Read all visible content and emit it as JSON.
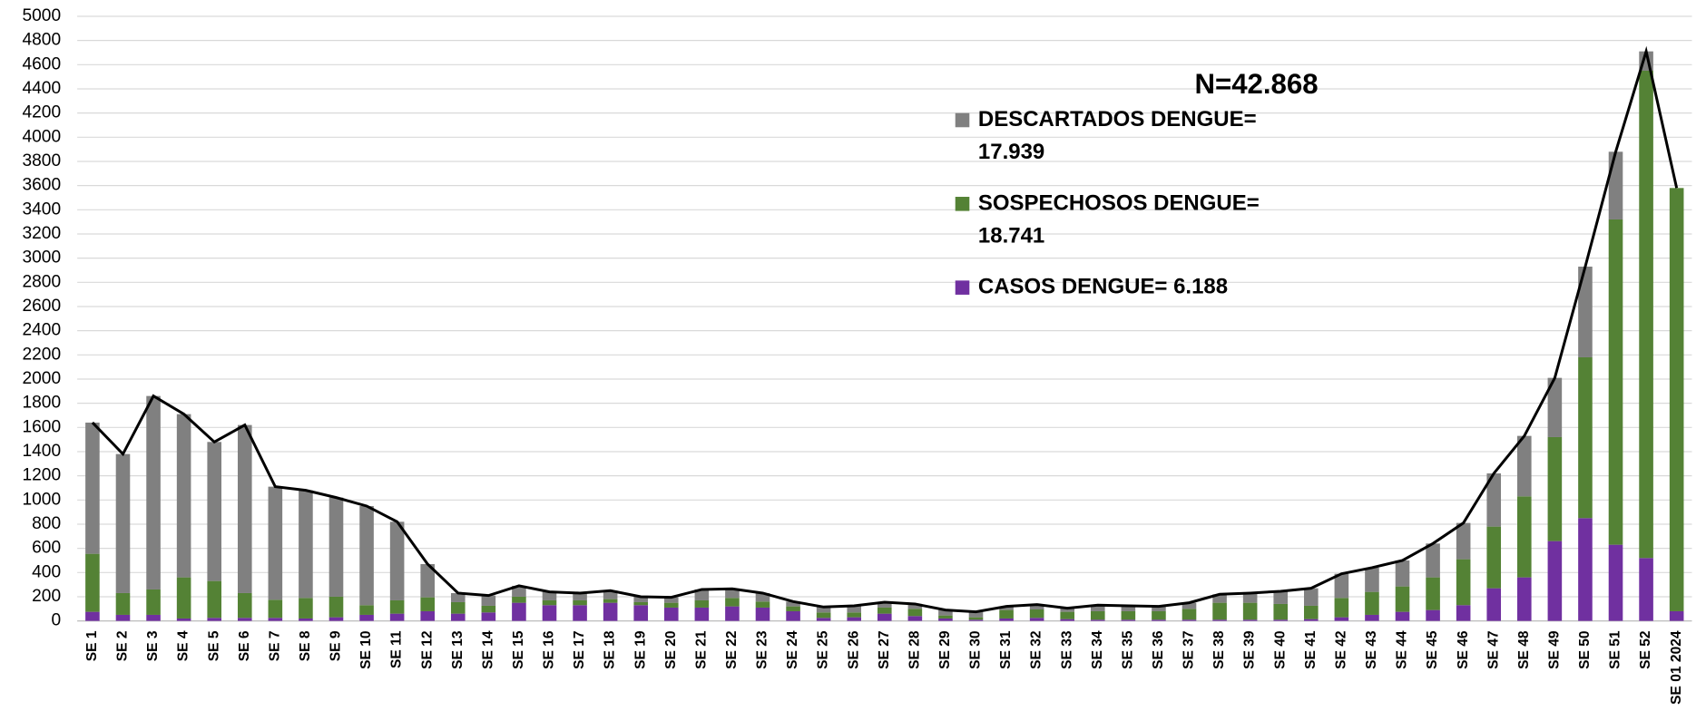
{
  "chart_data": {
    "type": "bar",
    "stacked": true,
    "annotation": "N=42.868",
    "categories": [
      "SE 1",
      "SE 2",
      "SE 3",
      "SE 4",
      "SE 5",
      "SE 6",
      "SE 7",
      "SE 8",
      "SE 9",
      "SE 10",
      "SE 11",
      "SE 12",
      "SE 13",
      "SE 14",
      "SE 15",
      "SE 16",
      "SE 17",
      "SE 18",
      "SE 19",
      "SE 20",
      "SE 21",
      "SE 22",
      "SE 23",
      "SE 24",
      "SE 25",
      "SE 26",
      "SE 27",
      "SE 28",
      "SE 29",
      "SE 30",
      "SE 31",
      "SE 32",
      "SE 33",
      "SE 34",
      "SE 35",
      "SE 36",
      "SE 37",
      "SE 38",
      "SE 39",
      "SE 40",
      "SE 41",
      "SE 42",
      "SE 43",
      "SE 44",
      "SE 45",
      "SE 46",
      "SE 47",
      "SE 48",
      "SE 49",
      "SE 50",
      "SE 51",
      "SE 52",
      "SE 01 2024"
    ],
    "series": [
      {
        "name": "CASOS DENGUE= 6.188",
        "color": "#7030a0",
        "values": [
          75,
          50,
          50,
          20,
          25,
          25,
          25,
          20,
          30,
          50,
          60,
          80,
          60,
          70,
          150,
          130,
          130,
          150,
          130,
          110,
          110,
          120,
          110,
          80,
          25,
          30,
          60,
          40,
          20,
          10,
          20,
          25,
          15,
          10,
          10,
          10,
          10,
          10,
          10,
          10,
          15,
          30,
          50,
          75,
          90,
          130,
          270,
          360,
          660,
          850,
          630,
          520,
          80
        ]
      },
      {
        "name": "SOSPECHOSOS DENGUE= 18.741",
        "color": "#548235",
        "values": [
          480,
          180,
          210,
          340,
          305,
          205,
          150,
          170,
          170,
          80,
          110,
          115,
          95,
          55,
          50,
          40,
          40,
          30,
          25,
          40,
          60,
          70,
          50,
          40,
          45,
          40,
          50,
          60,
          25,
          20,
          70,
          70,
          60,
          70,
          70,
          70,
          90,
          140,
          140,
          130,
          110,
          160,
          190,
          210,
          270,
          380,
          510,
          670,
          860,
          1330,
          2690,
          4030,
          3500
        ]
      },
      {
        "name": "DESCARTADOS DENGUE= 17.939",
        "color": "#808080",
        "values": [
          1085,
          1150,
          1600,
          1350,
          1150,
          1390,
          935,
          890,
          820,
          820,
          650,
          275,
          75,
          85,
          90,
          70,
          60,
          70,
          45,
          45,
          90,
          75,
          70,
          40,
          45,
          55,
          45,
          40,
          45,
          45,
          30,
          40,
          30,
          50,
          45,
          40,
          50,
          70,
          80,
          105,
          145,
          200,
          200,
          215,
          280,
          300,
          440,
          500,
          490,
          750,
          560,
          160,
          0
        ]
      }
    ],
    "totals": [
      1640,
      1380,
      1860,
      1710,
      1480,
      1620,
      1110,
      1080,
      1020,
      950,
      820,
      470,
      230,
      210,
      290,
      240,
      230,
      250,
      200,
      195,
      260,
      265,
      230,
      160,
      115,
      125,
      155,
      140,
      90,
      75,
      120,
      135,
      105,
      130,
      125,
      120,
      150,
      220,
      230,
      245,
      270,
      390,
      440,
      500,
      640,
      810,
      1220,
      1530,
      2010,
      2930,
      3880,
      4710,
      3580
    ],
    "line_color": "#000000",
    "ylim": [
      0,
      5000
    ],
    "yticks": [
      0,
      200,
      400,
      600,
      800,
      1000,
      1200,
      1400,
      1600,
      1800,
      2000,
      2200,
      2400,
      2600,
      2800,
      3000,
      3200,
      3400,
      3600,
      3800,
      4000,
      4200,
      4400,
      4600,
      4800,
      5000
    ],
    "grid": true
  }
}
